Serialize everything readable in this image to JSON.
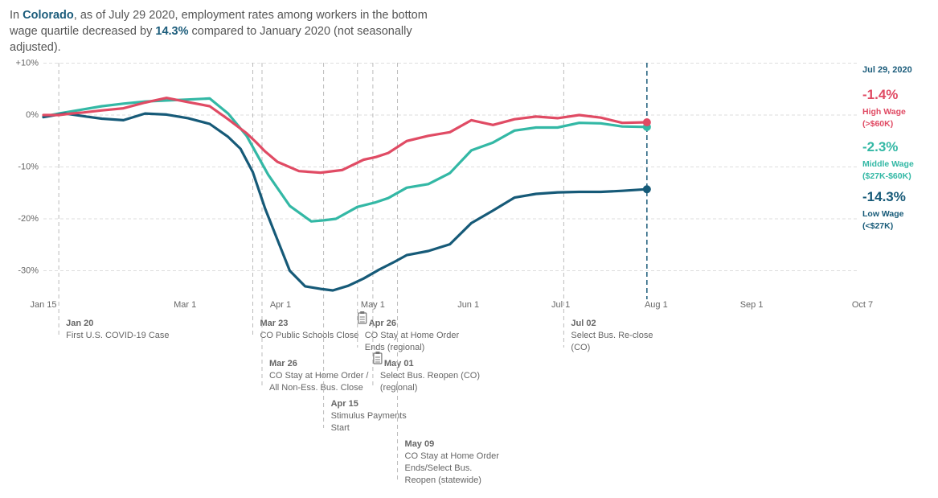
{
  "headline": {
    "p1": "In ",
    "place": "Colorado",
    "p2": ", as of July 29 2020, employment rates among workers in the bottom wage quartile decreased by ",
    "pct": "14.3%",
    "p3": " compared to January 2020 (not seasonally adjusted)."
  },
  "colors": {
    "high": "#e04b64",
    "middle": "#33b8a5",
    "low": "#165a78",
    "accent": "#1b5c7b",
    "grid": "#dddddd",
    "event_line": "#bbbbbb"
  },
  "chart_data": {
    "type": "line",
    "x_axis": {
      "min": "2020-01-15",
      "max": "2020-10-07",
      "tick_labels": [
        "Jan 15",
        "Mar 1",
        "Apr 1",
        "May 1",
        "Jun 1",
        "Jul 1",
        "Aug 1",
        "Sep 1",
        "Oct 7"
      ],
      "tick_dates": [
        "2020-01-15",
        "2020-03-01",
        "2020-04-01",
        "2020-05-01",
        "2020-06-01",
        "2020-07-01",
        "2020-08-01",
        "2020-09-01",
        "2020-10-07"
      ]
    },
    "y_axis": {
      "min": -35,
      "max": 10,
      "ticks": [
        10,
        0,
        -10,
        -20,
        -30
      ],
      "tick_labels": [
        "+10%",
        "0%",
        "-10%",
        "-20%",
        "-30%"
      ]
    },
    "grid": true,
    "current_date": "2020-07-29",
    "series": [
      {
        "key": "high",
        "name": "High Wage",
        "points": [
          [
            "2020-01-15",
            0
          ],
          [
            "2020-01-20",
            0
          ],
          [
            "2020-01-24",
            0.3
          ],
          [
            "2020-01-28",
            0.5
          ],
          [
            "2020-02-03",
            0.9
          ],
          [
            "2020-02-10",
            1.3
          ],
          [
            "2020-02-17",
            2.4
          ],
          [
            "2020-02-24",
            3.3
          ],
          [
            "2020-03-02",
            2.5
          ],
          [
            "2020-03-09",
            1.7
          ],
          [
            "2020-03-15",
            -0.8
          ],
          [
            "2020-03-21",
            -3.5
          ],
          [
            "2020-03-24",
            -5.2
          ],
          [
            "2020-03-27",
            -7
          ],
          [
            "2020-03-31",
            -9
          ],
          [
            "2020-04-07",
            -10.8
          ],
          [
            "2020-04-14",
            -11.1
          ],
          [
            "2020-04-21",
            -10.6
          ],
          [
            "2020-04-28",
            -8.6
          ],
          [
            "2020-05-02",
            -8.1
          ],
          [
            "2020-05-06",
            -7.3
          ],
          [
            "2020-05-12",
            -5
          ],
          [
            "2020-05-19",
            -4
          ],
          [
            "2020-05-26",
            -3.3
          ],
          [
            "2020-06-02",
            -1
          ],
          [
            "2020-06-09",
            -1.9
          ],
          [
            "2020-06-16",
            -0.8
          ],
          [
            "2020-06-23",
            -0.3
          ],
          [
            "2020-06-30",
            -0.6
          ],
          [
            "2020-07-07",
            0
          ],
          [
            "2020-07-14",
            -0.5
          ],
          [
            "2020-07-21",
            -1.5
          ],
          [
            "2020-07-29",
            -1.4
          ]
        ]
      },
      {
        "key": "middle",
        "name": "Middle Wage",
        "points": [
          [
            "2020-01-15",
            -0.3
          ],
          [
            "2020-01-20",
            0.3
          ],
          [
            "2020-01-27",
            1
          ],
          [
            "2020-02-03",
            1.7
          ],
          [
            "2020-02-10",
            2.2
          ],
          [
            "2020-02-17",
            2.6
          ],
          [
            "2020-02-24",
            2.8
          ],
          [
            "2020-03-02",
            3
          ],
          [
            "2020-03-09",
            3.2
          ],
          [
            "2020-03-15",
            0.3
          ],
          [
            "2020-03-21",
            -4
          ],
          [
            "2020-03-28",
            -11.5
          ],
          [
            "2020-04-04",
            -17.5
          ],
          [
            "2020-04-11",
            -20.5
          ],
          [
            "2020-04-15",
            -20.3
          ],
          [
            "2020-04-19",
            -20
          ],
          [
            "2020-04-26",
            -17.7
          ],
          [
            "2020-05-02",
            -16.8
          ],
          [
            "2020-05-06",
            -16
          ],
          [
            "2020-05-12",
            -14
          ],
          [
            "2020-05-19",
            -13.3
          ],
          [
            "2020-05-26",
            -11.2
          ],
          [
            "2020-06-02",
            -6.8
          ],
          [
            "2020-06-09",
            -5.3
          ],
          [
            "2020-06-16",
            -3
          ],
          [
            "2020-06-23",
            -2.4
          ],
          [
            "2020-06-30",
            -2.4
          ],
          [
            "2020-07-07",
            -1.5
          ],
          [
            "2020-07-14",
            -1.6
          ],
          [
            "2020-07-21",
            -2.2
          ],
          [
            "2020-07-29",
            -2.3
          ]
        ]
      },
      {
        "key": "low",
        "name": "Low Wage",
        "points": [
          [
            "2020-01-15",
            -0.4
          ],
          [
            "2020-01-22",
            0.3
          ],
          [
            "2020-01-29",
            -0.3
          ],
          [
            "2020-02-03",
            -0.7
          ],
          [
            "2020-02-10",
            -1
          ],
          [
            "2020-02-17",
            0.3
          ],
          [
            "2020-02-24",
            0.1
          ],
          [
            "2020-03-02",
            -0.6
          ],
          [
            "2020-03-09",
            -1.7
          ],
          [
            "2020-03-15",
            -4.2
          ],
          [
            "2020-03-19",
            -6.5
          ],
          [
            "2020-03-23",
            -11
          ],
          [
            "2020-03-27",
            -18
          ],
          [
            "2020-03-31",
            -24
          ],
          [
            "2020-04-04",
            -30
          ],
          [
            "2020-04-09",
            -33
          ],
          [
            "2020-04-14",
            -33.5
          ],
          [
            "2020-04-18",
            -33.8
          ],
          [
            "2020-04-23",
            -32.9
          ],
          [
            "2020-04-28",
            -31.5
          ],
          [
            "2020-05-03",
            -29.8
          ],
          [
            "2020-05-08",
            -28.3
          ],
          [
            "2020-05-12",
            -27
          ],
          [
            "2020-05-19",
            -26.2
          ],
          [
            "2020-05-26",
            -24.9
          ],
          [
            "2020-06-02",
            -20.8
          ],
          [
            "2020-06-09",
            -18.4
          ],
          [
            "2020-06-16",
            -15.9
          ],
          [
            "2020-06-23",
            -15.2
          ],
          [
            "2020-06-30",
            -14.9
          ],
          [
            "2020-07-07",
            -14.8
          ],
          [
            "2020-07-14",
            -14.8
          ],
          [
            "2020-07-21",
            -14.6
          ],
          [
            "2020-07-29",
            -14.3
          ]
        ]
      }
    ],
    "end_labels": {
      "date": "Jul 29, 2020",
      "high": {
        "value": "-1.4%",
        "label": "High Wage",
        "range": "(>$60K)"
      },
      "middle": {
        "value": "-2.3%",
        "label": "Middle Wage",
        "range": "($27K-$60K)"
      },
      "low": {
        "value": "-14.3%",
        "label": "Low Wage",
        "range": "(<$27K)"
      }
    },
    "events": [
      {
        "date": "2020-01-20",
        "date_label": "Jan 20",
        "lines": [
          "First U.S. COVID-19 Case"
        ],
        "tier": 0,
        "icon": false
      },
      {
        "date": "2020-03-23",
        "date_label": "Mar 23",
        "lines": [
          "CO Public Schools Close"
        ],
        "tier": 0,
        "icon": false
      },
      {
        "date": "2020-03-26",
        "date_label": "Mar 26",
        "lines": [
          "CO Stay at Home Order /",
          "All Non-Ess. Bus. Close"
        ],
        "tier": 1,
        "icon": false
      },
      {
        "date": "2020-04-15",
        "date_label": "Apr 15",
        "lines": [
          "Stimulus Payments",
          "Start"
        ],
        "tier": 2,
        "icon": false
      },
      {
        "date": "2020-04-26",
        "date_label": "Apr 26",
        "lines": [
          "CO Stay at Home Order",
          "Ends (regional)"
        ],
        "tier": 0,
        "icon": true
      },
      {
        "date": "2020-05-01",
        "date_label": "May 01",
        "lines": [
          "Select Bus. Reopen (CO)",
          "(regional)"
        ],
        "tier": 1,
        "icon": true
      },
      {
        "date": "2020-05-09",
        "date_label": "May 09",
        "lines": [
          "CO Stay at Home Order",
          "Ends/Select Bus.",
          "Reopen (statewide)"
        ],
        "tier": 3,
        "icon": false
      },
      {
        "date": "2020-07-02",
        "date_label": "Jul 02",
        "lines": [
          "Select Bus. Re-close",
          "(CO)"
        ],
        "tier": 0,
        "icon": false
      }
    ]
  }
}
